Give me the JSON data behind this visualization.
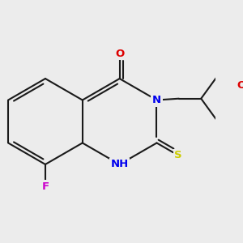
{
  "bg_color": "#ececec",
  "bond_color": "#1a1a1a",
  "bond_width": 1.5,
  "atom_colors": {
    "N": "#0000ee",
    "O": "#dd0000",
    "S": "#cccc00",
    "F": "#cc00cc",
    "C": "#1a1a1a"
  },
  "font_size": 9.5
}
